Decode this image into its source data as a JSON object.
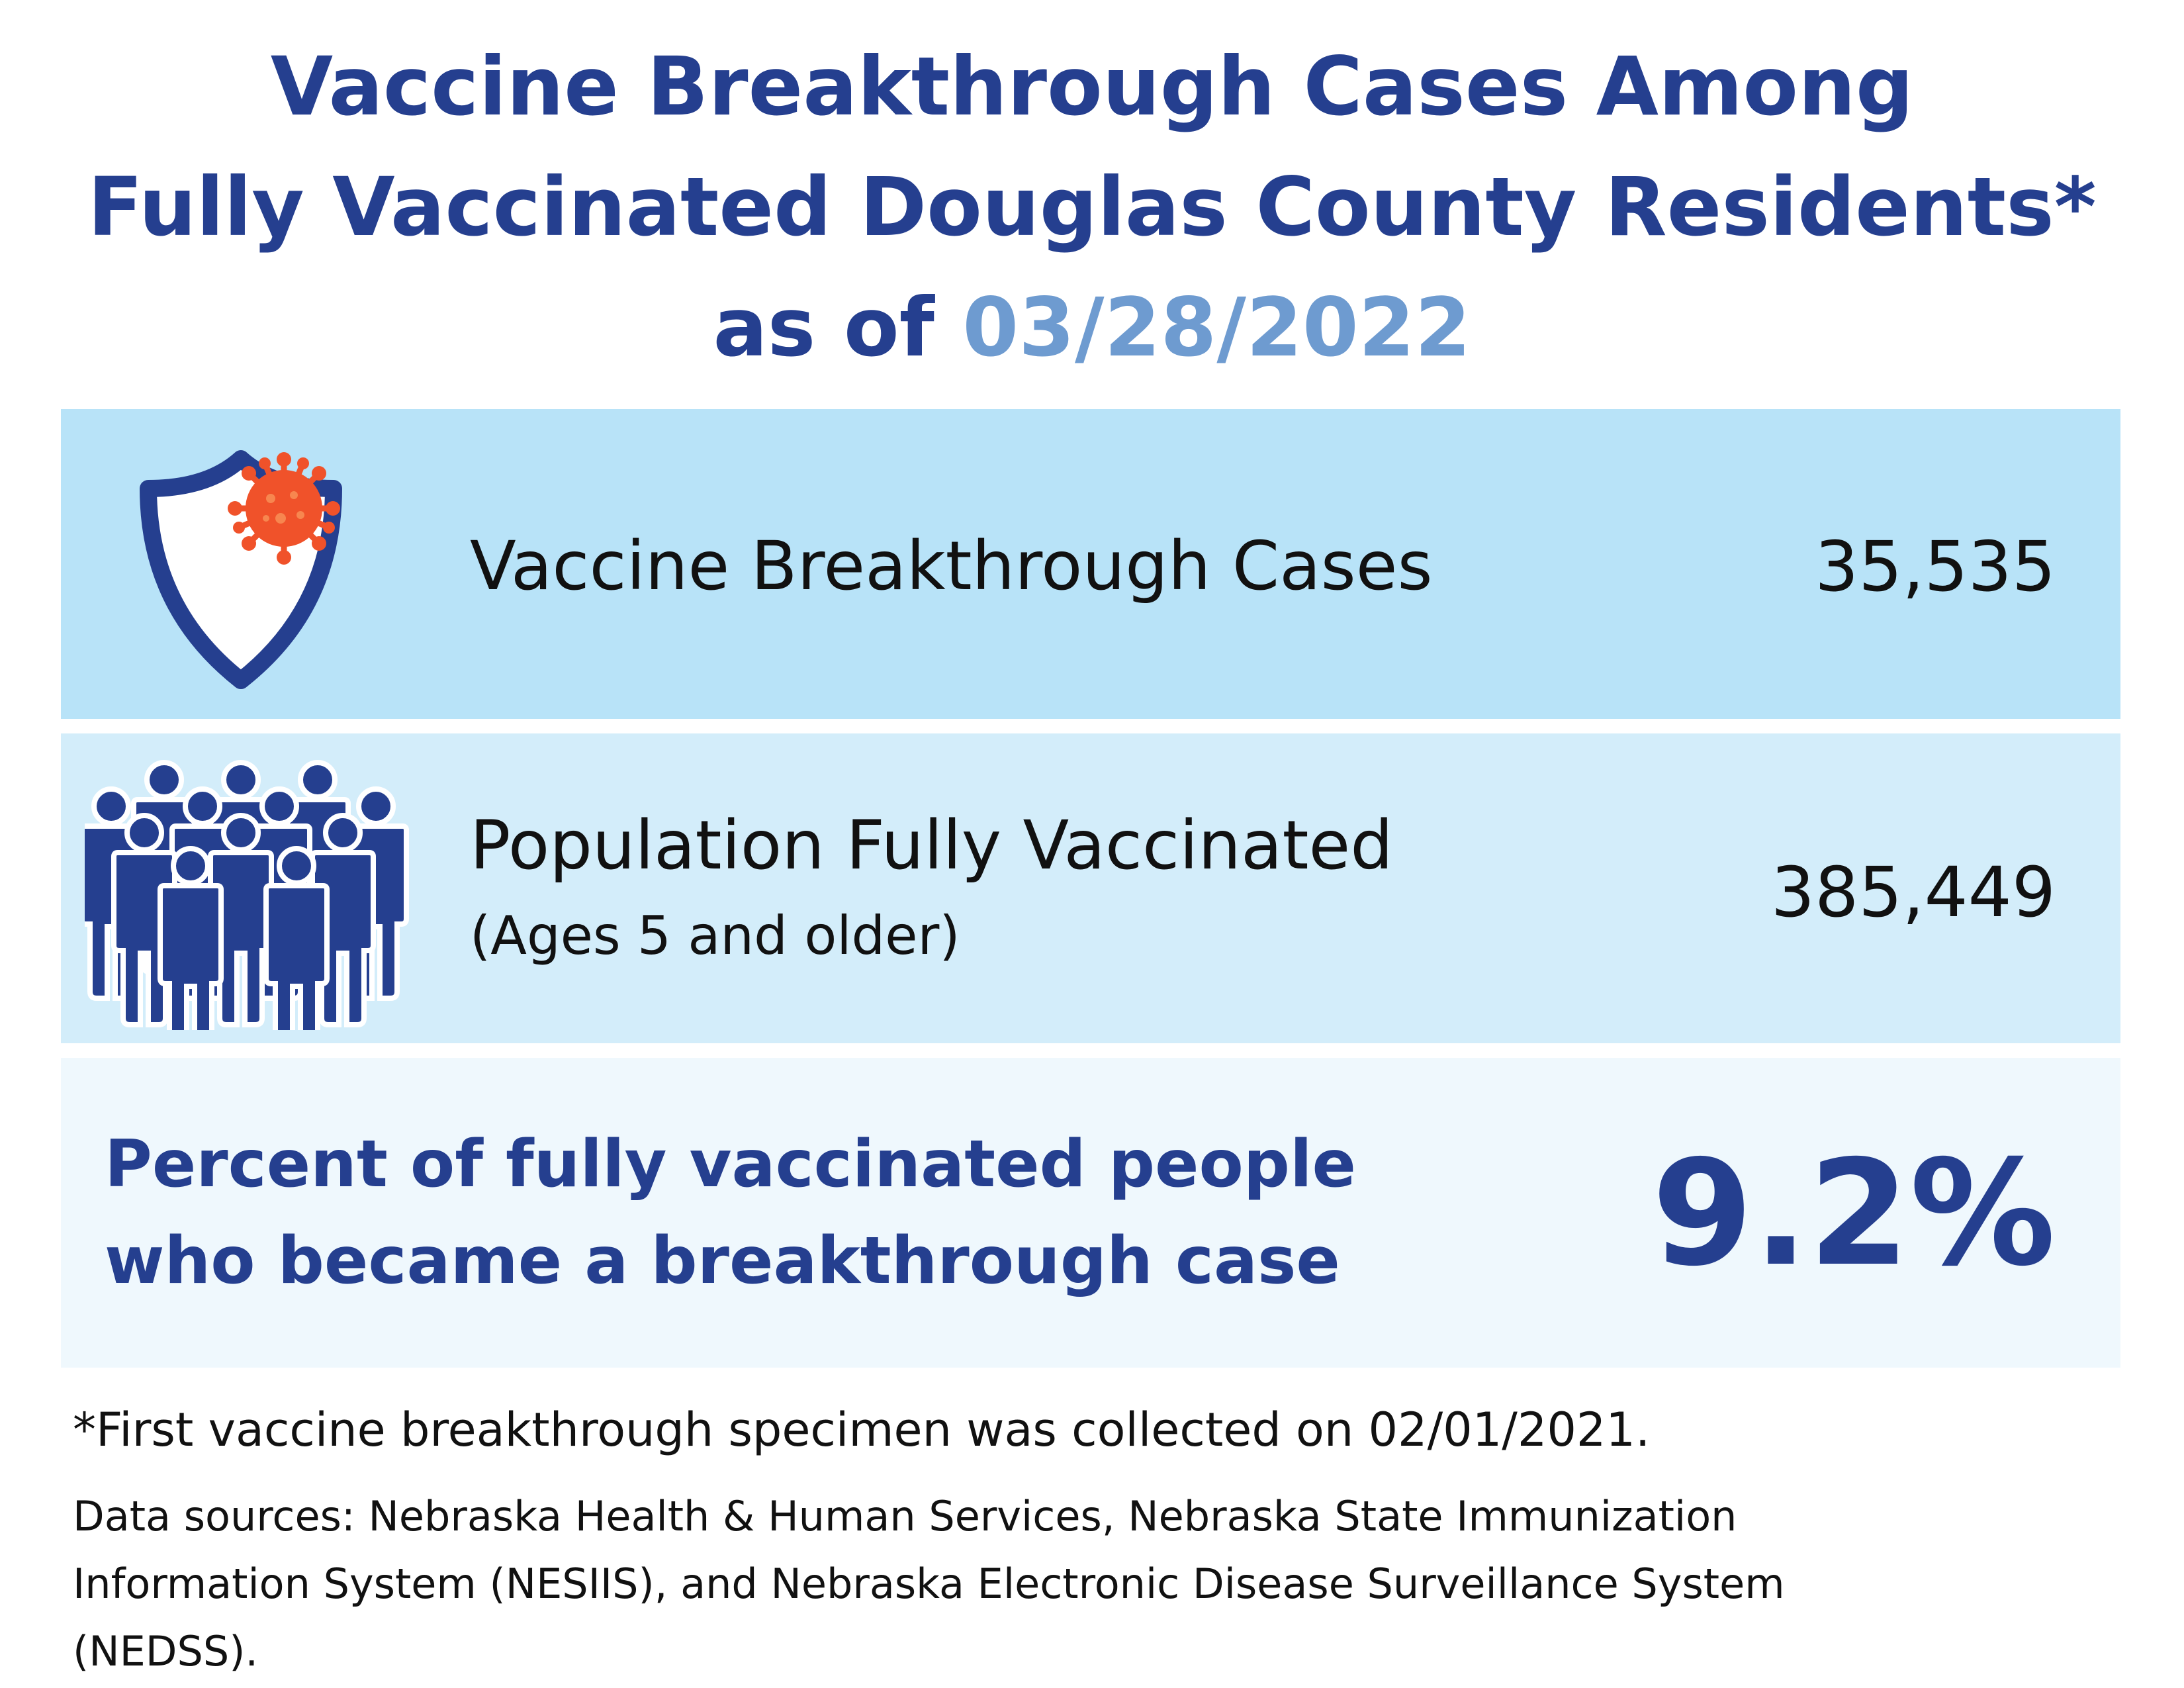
{
  "header": {
    "title_line1": "Vaccine Breakthrough Cases Among",
    "title_line2": "Fully Vaccinated Douglas County Residents*",
    "title_line3_prefix": "as of ",
    "title_date": "03/28/2022"
  },
  "rows": {
    "breakthrough": {
      "label": "Vaccine Breakthrough Cases",
      "value": "35,535",
      "icon": "shield-virus-icon"
    },
    "vaccinated": {
      "label": "Population Fully Vaccinated",
      "sublabel": "(Ages 5 and older)",
      "value": "385,449",
      "icon": "crowd-people-icon"
    },
    "percent": {
      "label_line1": "Percent of fully vaccinated people",
      "label_line2": "who became a breakthrough case",
      "value": "9.2%"
    }
  },
  "footnote": "*First vaccine breakthrough specimen was collected on 02/01/2021.",
  "sources": {
    "line1": "Data sources: Nebraska Health & Human Services, Nebraska State Immunization",
    "line2": "Information System (NESIIS), and Nebraska Electronic Disease Surveillance System",
    "line3": "(NEDSS)."
  },
  "colors": {
    "title_blue": "#253f8f",
    "date_blue": "#6e9bd0",
    "band1": "#b8e3f8",
    "band2": "#d3edfa",
    "band3": "#eff8fd",
    "virus_orange": "#f0522a"
  }
}
